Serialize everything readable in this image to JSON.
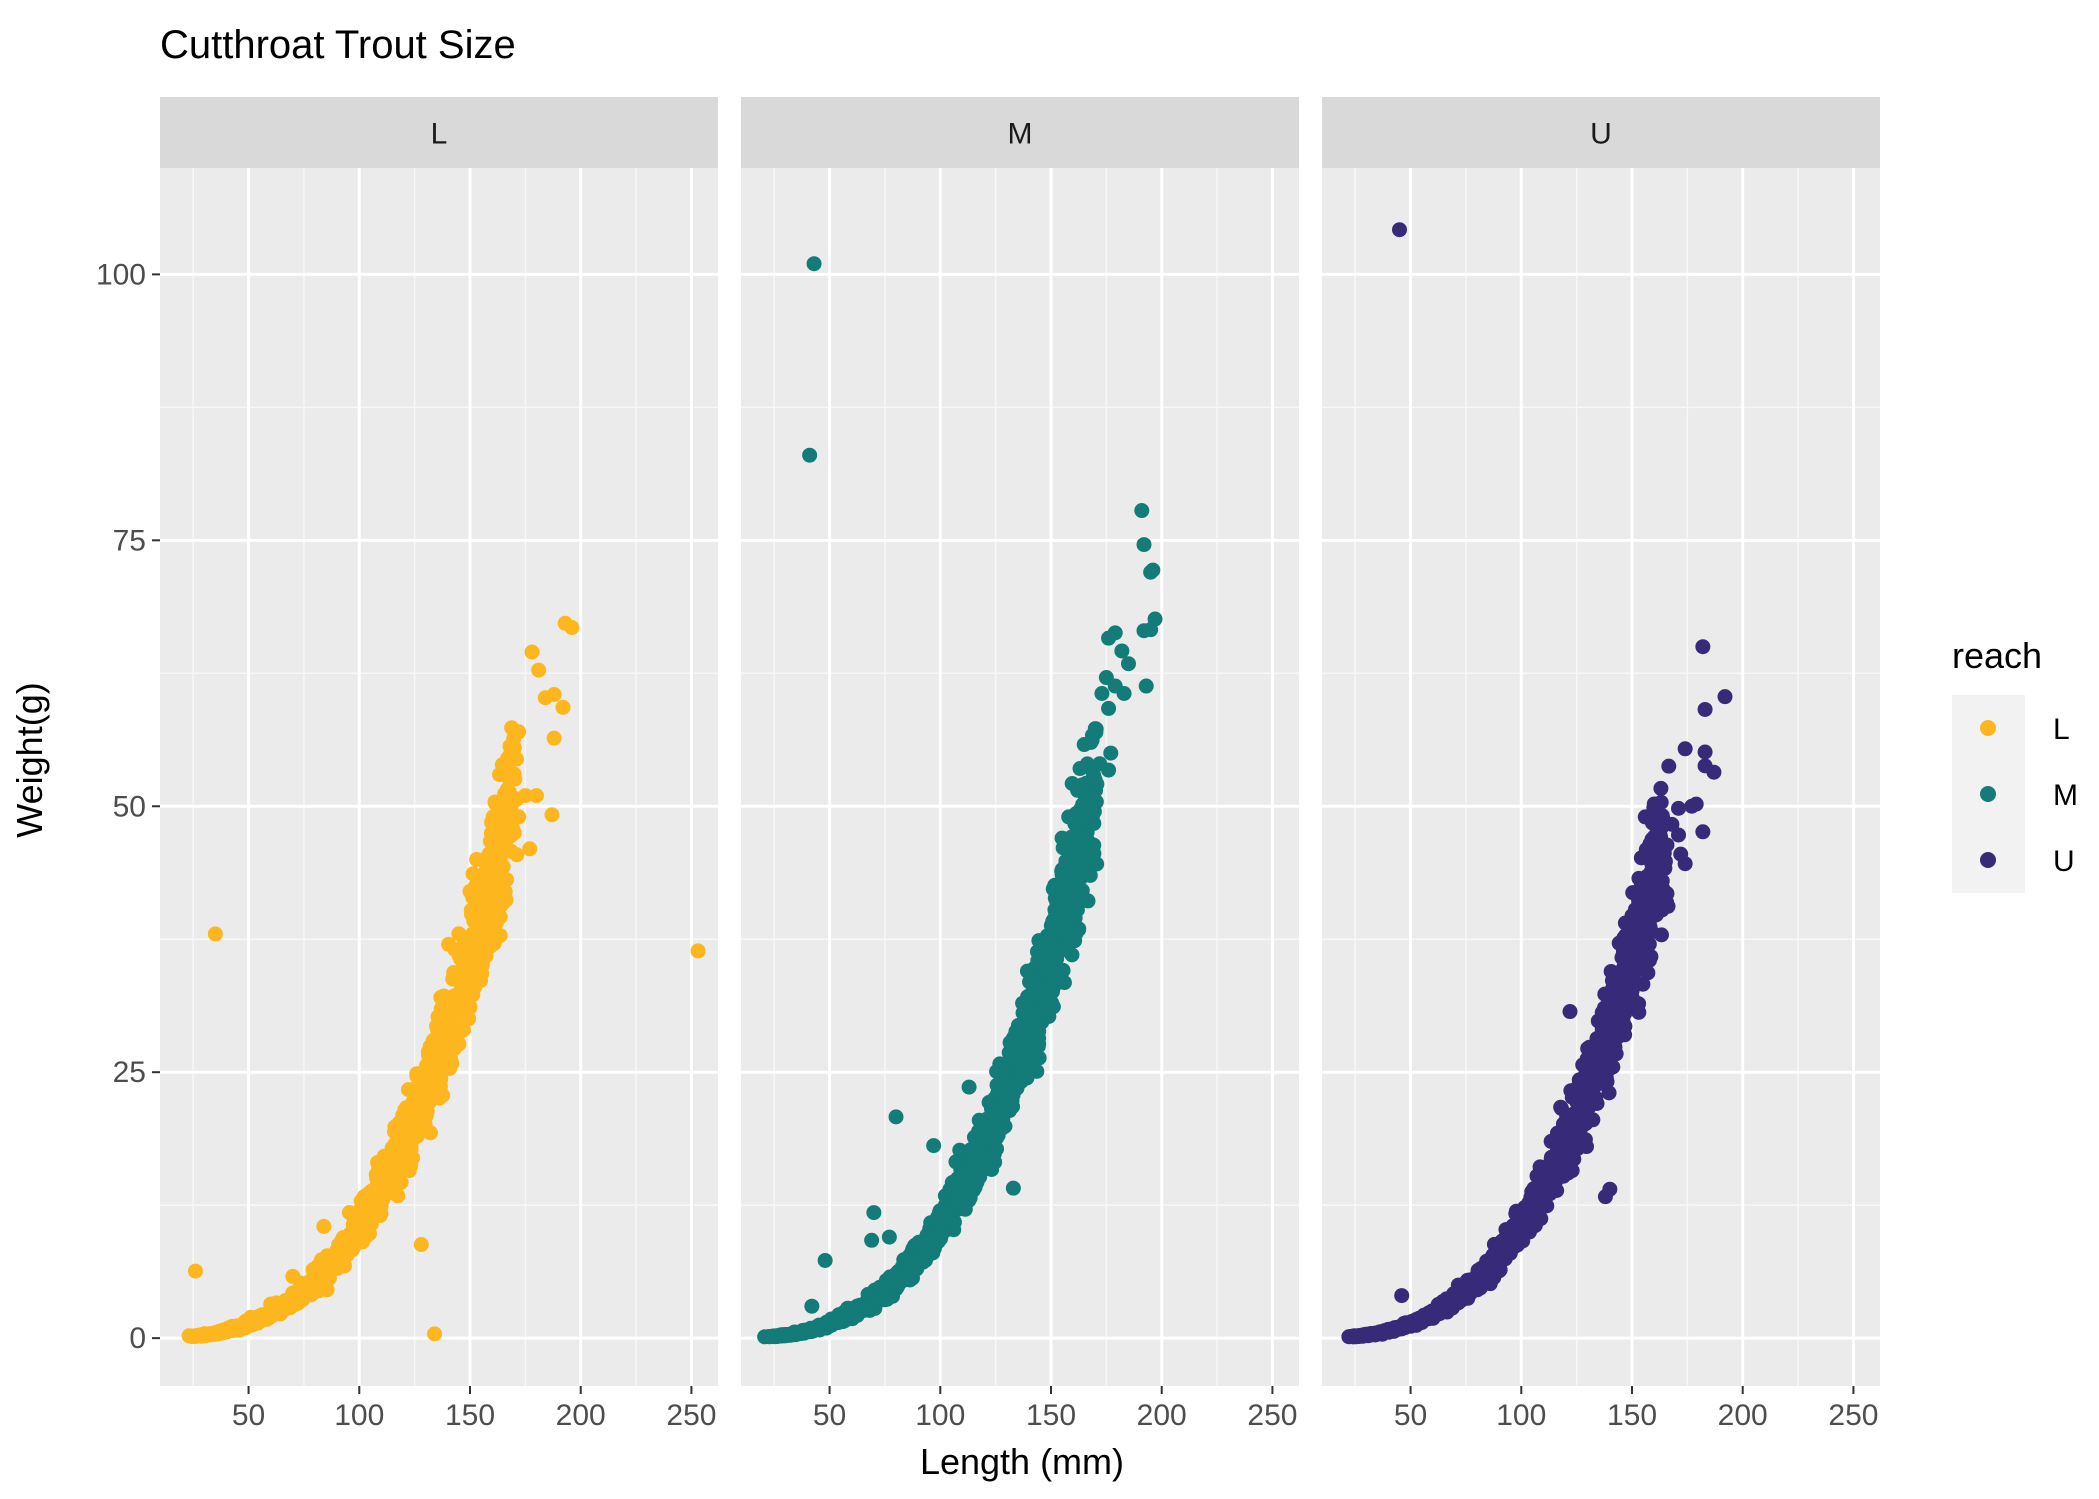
{
  "chart_data": {
    "type": "scatter",
    "title": "Cutthroat Trout Size",
    "xlabel": "Length (mm)",
    "ylabel": "Weight(g)",
    "xlim": [
      10,
      262
    ],
    "ylim": [
      -4.5,
      110
    ],
    "x_ticks": [
      50,
      100,
      150,
      200,
      250
    ],
    "y_ticks": [
      0,
      25,
      50,
      75,
      100
    ],
    "grid": true,
    "facet_by": "reach",
    "legend": {
      "title": "reach",
      "position": "right",
      "entries": [
        {
          "label": "L",
          "color": "#FDB61E"
        },
        {
          "label": "M",
          "color": "#137B78"
        },
        {
          "label": "U",
          "color": "#372B79"
        }
      ]
    },
    "facets": [
      {
        "label": "L",
        "color": "#FDB61E",
        "curve": {
          "a": 1.05e-05,
          "b": 3.0,
          "x_range": [
            24,
            170
          ],
          "spread": 0.07
        },
        "points": [
          [
            26,
            6.3
          ],
          [
            35,
            38
          ],
          [
            128,
            8.8
          ],
          [
            134,
            0.4
          ],
          [
            253,
            36.4
          ],
          [
            196,
            66.8
          ],
          [
            193,
            67.2
          ],
          [
            178,
            64.5
          ],
          [
            181,
            62.8
          ],
          [
            184,
            60.2
          ],
          [
            188,
            60.5
          ],
          [
            192,
            59.3
          ],
          [
            188,
            56.4
          ],
          [
            172,
            57
          ],
          [
            167,
            54.5
          ],
          [
            170,
            55.5
          ],
          [
            168,
            52.5
          ],
          [
            175,
            51
          ],
          [
            180,
            51
          ],
          [
            172,
            49
          ],
          [
            187,
            49.2
          ],
          [
            170,
            47.5
          ],
          [
            166,
            46.5
          ],
          [
            177,
            46
          ],
          [
            163,
            45.5
          ],
          [
            159,
            44.5
          ],
          [
            153,
            45
          ],
          [
            157,
            40
          ],
          [
            150,
            42
          ],
          [
            145,
            36
          ],
          [
            84,
            10.5
          ],
          [
            70,
            5.8
          ],
          [
            60,
            3.2
          ]
        ]
      },
      {
        "label": "M",
        "color": "#137B78",
        "curve": {
          "a": 1.05e-05,
          "b": 3.0,
          "x_range": [
            22,
            170
          ],
          "spread": 0.07
        },
        "points": [
          [
            43,
            101
          ],
          [
            41,
            83
          ],
          [
            80,
            20.8
          ],
          [
            48,
            7.3
          ],
          [
            42,
            3
          ],
          [
            97,
            18.1
          ],
          [
            113,
            23.6
          ],
          [
            133,
            14.1
          ],
          [
            70,
            11.8
          ],
          [
            69,
            9.2
          ],
          [
            77,
            9.5
          ],
          [
            191,
            77.8
          ],
          [
            192,
            74.6
          ],
          [
            196,
            72.2
          ],
          [
            195,
            72
          ],
          [
            197,
            67.6
          ],
          [
            192,
            66.5
          ],
          [
            195,
            66.6
          ],
          [
            179,
            66.3
          ],
          [
            176,
            65.8
          ],
          [
            182,
            64.6
          ],
          [
            185,
            63.4
          ],
          [
            175,
            62.1
          ],
          [
            193,
            61.3
          ],
          [
            179,
            61.3
          ],
          [
            183,
            60.6
          ],
          [
            173,
            60.6
          ],
          [
            176,
            59.2
          ],
          [
            170,
            57.3
          ],
          [
            165,
            55.8
          ],
          [
            168,
            56
          ],
          [
            177,
            55
          ],
          [
            172,
            54
          ],
          [
            176,
            53.4
          ],
          [
            162,
            51.5
          ],
          [
            164,
            52
          ],
          [
            158,
            49
          ],
          [
            155,
            47
          ],
          [
            165,
            46
          ],
          [
            160,
            44.5
          ]
        ]
      },
      {
        "label": "U",
        "color": "#372B79",
        "curve": {
          "a": 1.05e-05,
          "b": 3.0,
          "x_range": [
            22,
            165
          ],
          "spread": 0.07
        },
        "points": [
          [
            45,
            104.2
          ],
          [
            182,
            65
          ],
          [
            192,
            60.3
          ],
          [
            183,
            59.1
          ],
          [
            174,
            55.4
          ],
          [
            183,
            55.1
          ],
          [
            183,
            53.8
          ],
          [
            187,
            53.2
          ],
          [
            179,
            50.2
          ],
          [
            177,
            50
          ],
          [
            171,
            49.8
          ],
          [
            156,
            49
          ],
          [
            164,
            48.8
          ],
          [
            168,
            48.3
          ],
          [
            182,
            47.6
          ],
          [
            171,
            47.3
          ],
          [
            160,
            47.1
          ],
          [
            172,
            45.5
          ],
          [
            174,
            44.6
          ],
          [
            158,
            43
          ],
          [
            164,
            42.2
          ],
          [
            122,
            30.7
          ],
          [
            140,
            14
          ],
          [
            138,
            13.3
          ],
          [
            46,
            4
          ]
        ]
      }
    ]
  }
}
